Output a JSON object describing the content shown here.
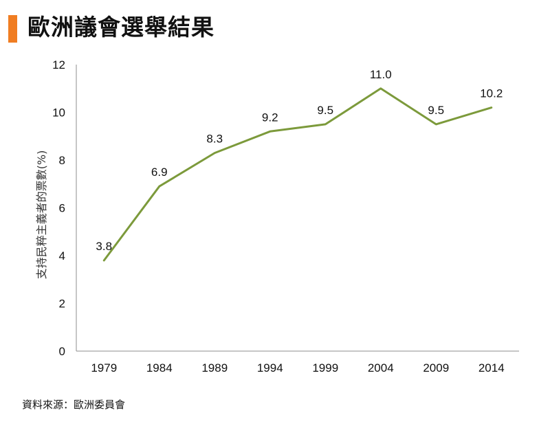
{
  "title": "歐洲議會選舉結果",
  "source": "資料來源：歐洲委員會",
  "colors": {
    "accent": "#f07d22",
    "line": "#7c9a3b",
    "axis": "#8c8c8c"
  },
  "chart_data": {
    "type": "line",
    "ylabel": "支持民粹主義者的票數(%)",
    "xlabel": "",
    "categories": [
      "1979",
      "1984",
      "1989",
      "1994",
      "1999",
      "2004",
      "2009",
      "2014"
    ],
    "series": [
      {
        "values": [
          3.8,
          6.9,
          8.3,
          9.2,
          9.5,
          11.0,
          9.5,
          10.2
        ]
      }
    ],
    "value_labels": [
      "3.8",
      "6.9",
      "8.3",
      "9.2",
      "9.5",
      "11.0",
      "9.5",
      "10.2"
    ],
    "ylim": [
      0,
      12
    ],
    "yticks": [
      "0",
      "2",
      "4",
      "6",
      "8",
      "10",
      "12"
    ],
    "grid": false,
    "legend": "none"
  }
}
